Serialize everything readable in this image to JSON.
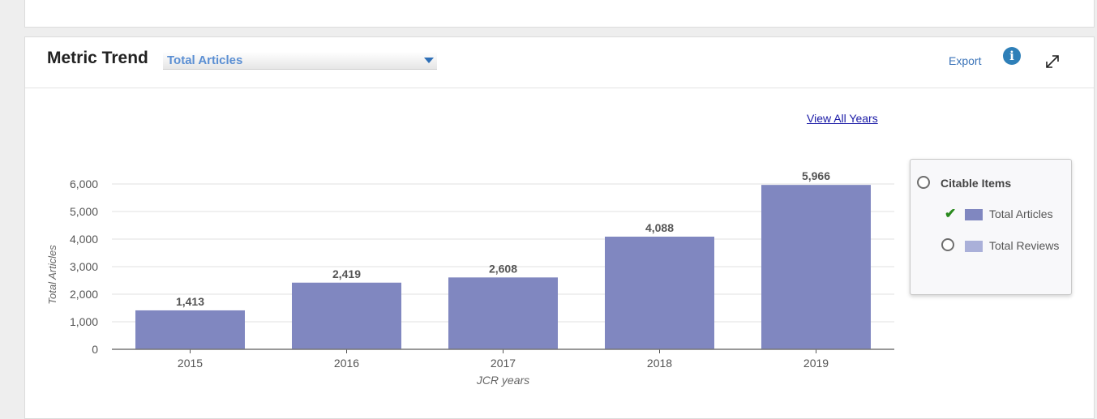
{
  "header": {
    "title": "Metric Trend",
    "metric_select": "Total Articles",
    "export_label": "Export",
    "info_icon": "i"
  },
  "view_all_years": "View All Years",
  "legend": {
    "heading": "Citable Items",
    "items": [
      {
        "label": "Total Articles",
        "color": "#8087c0",
        "checked": true
      },
      {
        "label": "Total Reviews",
        "color": "#aab0d9",
        "checked": false
      }
    ]
  },
  "colors": {
    "bar": "#8087c0",
    "accent": "#3a73b8",
    "check": "#2a8a1e"
  },
  "chart_data": {
    "type": "bar",
    "categories": [
      "2015",
      "2016",
      "2017",
      "2018",
      "2019"
    ],
    "values": [
      1413,
      2419,
      2608,
      4088,
      5966
    ],
    "value_labels": [
      "1,413",
      "2,419",
      "2,608",
      "4,088",
      "5,966"
    ],
    "xlabel": "JCR years",
    "ylabel": "Total Articles",
    "ylim": [
      0,
      6000
    ],
    "yticks": [
      0,
      1000,
      2000,
      3000,
      4000,
      5000,
      6000
    ],
    "ytick_labels": [
      "0",
      "1,000",
      "2,000",
      "3,000",
      "4,000",
      "5,000",
      "6,000"
    ],
    "grid": true
  }
}
